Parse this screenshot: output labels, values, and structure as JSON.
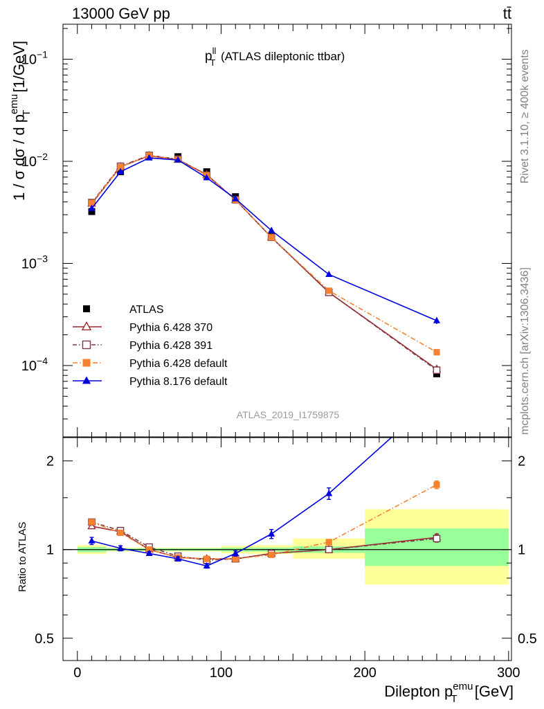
{
  "header": {
    "left": "13000 GeV pp",
    "right": "tt̄"
  },
  "side_labels": {
    "upper": "Rivet 3.1.10, ≥ 400k events",
    "lower": "mcplots.cern.ch [arXiv:1306.3436]"
  },
  "chart_data": [
    {
      "type": "line",
      "panel": "main",
      "title": "p_T^ll (ATLAS dileptonic ttbar)",
      "title_main": "p",
      "title_sup": "ll",
      "title_sub": "T",
      "title_rest": " (ATLAS dileptonic ttbar)",
      "ylabel": "1 / σ dσ / d p_T^emu [1/GeV]",
      "ylabel_parts": {
        "a": "1 / σ dσ / d p",
        "sub": "T",
        "sup": "emu",
        "b": " [1/GeV]"
      },
      "yscale": "log",
      "ylim": [
        2e-05,
        0.22
      ],
      "xlim": [
        -10,
        302
      ],
      "yticks": [
        {
          "value": 0.0001,
          "base": "10",
          "exp": "−4"
        },
        {
          "value": 0.001,
          "base": "10",
          "exp": "−3"
        },
        {
          "value": 0.01,
          "base": "10",
          "exp": "−2"
        },
        {
          "value": 0.1,
          "base": "10",
          "exp": "−1"
        }
      ],
      "legend_position": "lower-left",
      "watermark": "ATLAS_2019_I1759875",
      "x": [
        10,
        30,
        50,
        70,
        90,
        110,
        135,
        175,
        250
      ],
      "xerr": [
        10,
        10,
        10,
        10,
        10,
        10,
        15,
        25,
        50
      ],
      "series": [
        {
          "name": "ATLAS",
          "kind": "data",
          "color": "#000000",
          "marker": "square",
          "values": [
            0.00322,
            0.0079,
            0.0114,
            0.0111,
            0.0079,
            0.0045,
            0.00185,
            0.00052,
            8.3e-05
          ]
        },
        {
          "name": "Pythia 6.428 370",
          "kind": "mc",
          "color": "#a0282e",
          "marker": "triangle-open",
          "dash": "",
          "values": [
            0.00385,
            0.00885,
            0.0113,
            0.0104,
            0.0074,
            0.0042,
            0.0018,
            0.00052,
            9.2e-05
          ]
        },
        {
          "name": "Pythia 6.428 391",
          "kind": "mc",
          "color": "#7a3b49",
          "marker": "square-open",
          "dash": "6,3,1.5,3",
          "values": [
            0.00395,
            0.00895,
            0.01145,
            0.0105,
            0.0073,
            0.0042,
            0.0018,
            0.00052,
            9e-05
          ]
        },
        {
          "name": "Pythia 6.428 default",
          "kind": "mc",
          "color": "#f58231",
          "marker": "square",
          "dash": "7,3,1.5,3",
          "values": [
            0.0039,
            0.0088,
            0.0114,
            0.0104,
            0.0073,
            0.0042,
            0.0018,
            0.00054,
            0.000135
          ]
        },
        {
          "name": "Pythia 8.176 default",
          "kind": "mc",
          "color": "#0000e0",
          "marker": "triangle",
          "dash": "",
          "values": [
            0.00345,
            0.0079,
            0.0108,
            0.0103,
            0.0069,
            0.0043,
            0.0021,
            0.00078,
            0.000275
          ],
          "yerr": [
            0,
            0,
            0,
            0,
            0,
            0,
            0,
            0,
            2e-05
          ]
        }
      ]
    },
    {
      "type": "line",
      "panel": "ratio",
      "ylabel": "Ratio to ATLAS",
      "xlabel": "Dilepton p_T^emu [GeV]",
      "xlabel_parts": {
        "a": "Dilepton p",
        "sub": "T",
        "sup": "emu",
        "b": " [GeV]"
      },
      "yscale": "log",
      "ylim": [
        0.42,
        2.4
      ],
      "xlim": [
        -10,
        302
      ],
      "yticks": [
        0.5,
        1,
        2
      ],
      "xticks": [
        0,
        100,
        200,
        300
      ],
      "bands": [
        {
          "x0": 0,
          "x1": 20,
          "yellow": [
            0.965,
            1.035
          ],
          "green": [
            0.98,
            1.02
          ]
        },
        {
          "x0": 20,
          "x1": 40,
          "yellow": [
            0.985,
            1.015
          ],
          "green": [
            0.99,
            1.01
          ]
        },
        {
          "x0": 40,
          "x1": 60,
          "yellow": [
            0.985,
            1.015
          ],
          "green": [
            0.99,
            1.01
          ]
        },
        {
          "x0": 60,
          "x1": 80,
          "yellow": [
            0.985,
            1.015
          ],
          "green": [
            0.99,
            1.01
          ]
        },
        {
          "x0": 80,
          "x1": 100,
          "yellow": [
            0.985,
            1.015
          ],
          "green": [
            0.99,
            1.01
          ]
        },
        {
          "x0": 100,
          "x1": 120,
          "yellow": [
            0.97,
            1.03
          ],
          "green": [
            0.985,
            1.015
          ]
        },
        {
          "x0": 120,
          "x1": 150,
          "yellow": [
            0.965,
            1.035
          ],
          "green": [
            0.985,
            1.015
          ]
        },
        {
          "x0": 150,
          "x1": 200,
          "yellow": [
            0.93,
            1.09
          ],
          "green": [
            0.975,
            1.025
          ]
        },
        {
          "x0": 200,
          "x1": 300,
          "yellow": [
            0.76,
            1.37
          ],
          "green": [
            0.88,
            1.18
          ]
        }
      ],
      "x": [
        10,
        30,
        50,
        70,
        90,
        110,
        135,
        175,
        250
      ],
      "series": [
        {
          "name": "Pythia 6.428 370",
          "color": "#a0282e",
          "marker": "triangle-open",
          "dash": "",
          "values": [
            1.2,
            1.15,
            1.0,
            0.94,
            0.93,
            0.93,
            0.97,
            1.0,
            1.1
          ],
          "yerr": [
            0,
            0,
            0,
            0,
            0,
            0,
            0,
            0,
            0.03
          ]
        },
        {
          "name": "Pythia 6.428 391",
          "color": "#7a3b49",
          "marker": "square-open",
          "dash": "6,3,1.5,3",
          "values": [
            1.24,
            1.16,
            1.02,
            0.95,
            0.92,
            0.93,
            0.97,
            1.0,
            1.09
          ],
          "yerr": [
            0,
            0,
            0,
            0,
            0,
            0,
            0,
            0,
            0.03
          ]
        },
        {
          "name": "Pythia 6.428 default",
          "color": "#f58231",
          "marker": "square",
          "dash": "7,3,1.5,3",
          "values": [
            1.24,
            1.14,
            1.0,
            0.94,
            0.93,
            0.93,
            0.96,
            1.06,
            1.66
          ],
          "yerr": [
            0,
            0,
            0,
            0,
            0,
            0,
            0,
            0.02,
            0.05
          ]
        },
        {
          "name": "Pythia 8.176 default",
          "color": "#0000e0",
          "marker": "triangle",
          "dash": "",
          "values": [
            1.07,
            1.01,
            0.97,
            0.93,
            0.88,
            0.97,
            1.13,
            1.55,
            3.3
          ],
          "yerr": [
            0.03,
            0.02,
            0.015,
            0.015,
            0.015,
            0.02,
            0.04,
            0.07,
            0.1
          ]
        }
      ]
    }
  ]
}
